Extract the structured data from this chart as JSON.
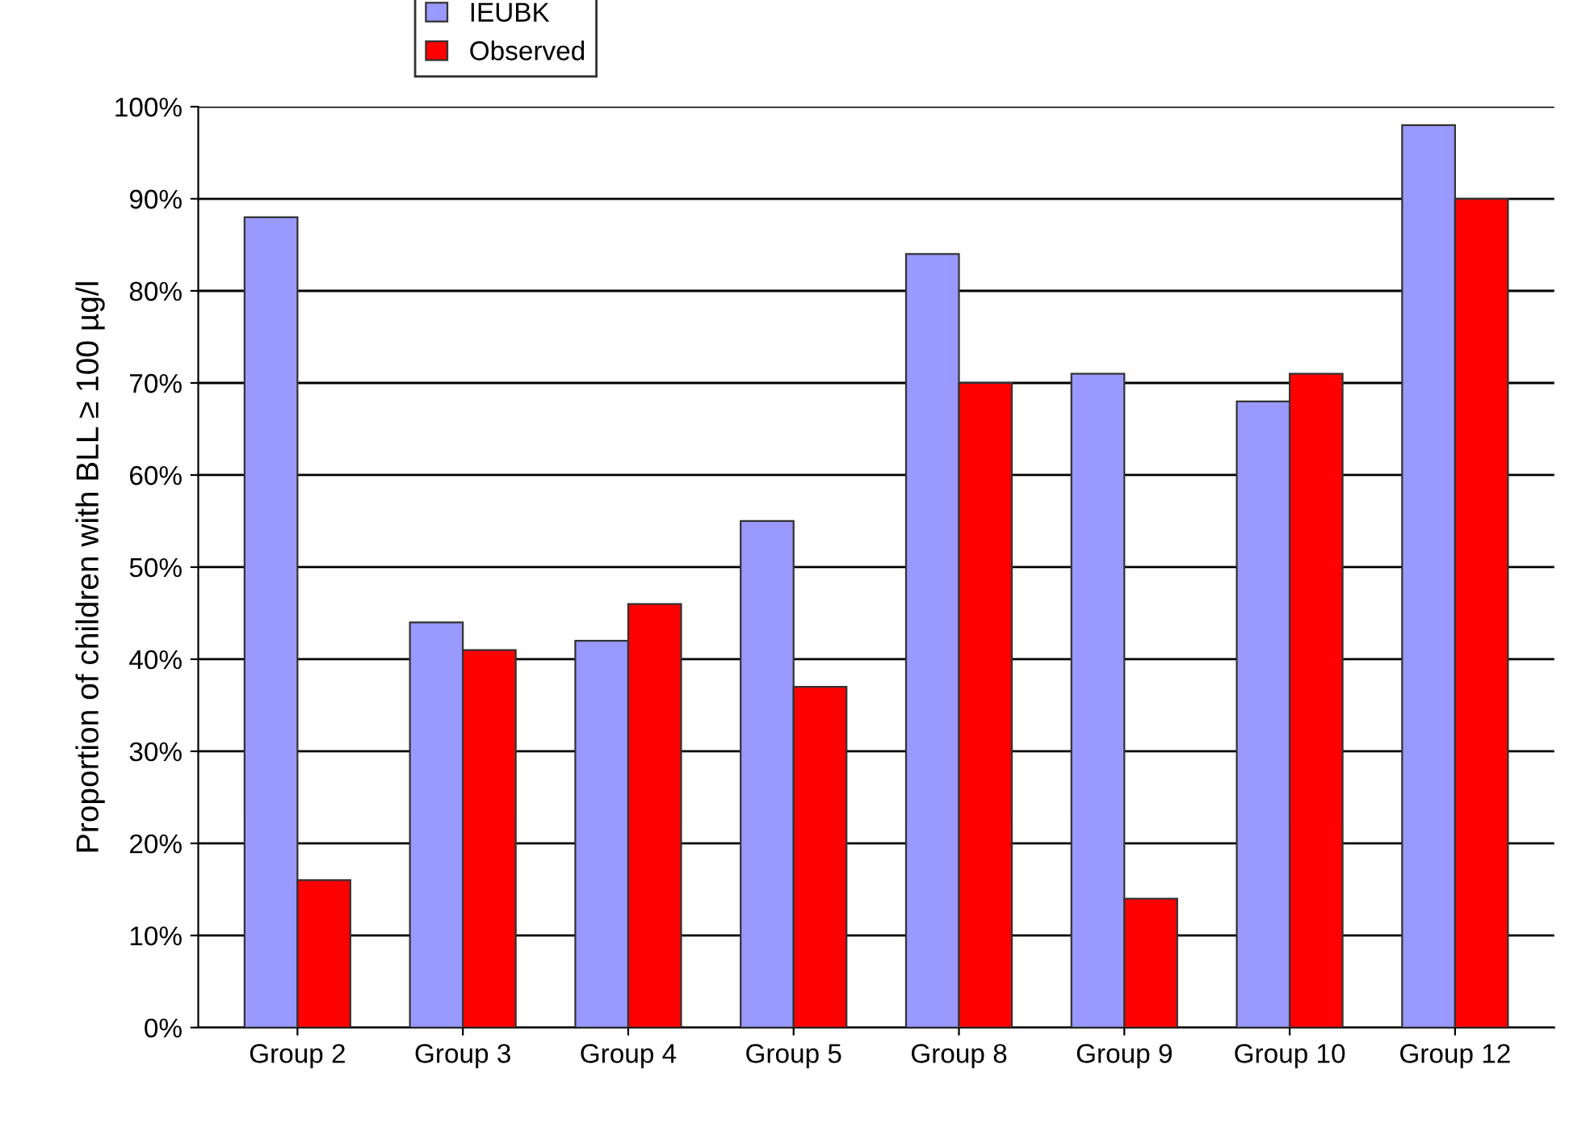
{
  "chart_data": {
    "type": "bar",
    "ylabel": "Proportion of children with BLL ≥ 100 µg/l",
    "categories": [
      "Group 2",
      "Group 3",
      "Group 4",
      "Group 5",
      "Group 8",
      "Group 9",
      "Group 10",
      "Group 12"
    ],
    "series": [
      {
        "name": "IEUBK",
        "color": "#9999ff",
        "values": [
          88,
          44,
          42,
          55,
          84,
          71,
          68,
          98
        ]
      },
      {
        "name": "Observed",
        "color": "#ff0000",
        "values": [
          16,
          41,
          46,
          37,
          70,
          14,
          71,
          90
        ]
      }
    ],
    "ylim": [
      0,
      100
    ],
    "yticks": [
      {
        "value": 0,
        "label": "0%"
      },
      {
        "value": 10,
        "label": "10%"
      },
      {
        "value": 20,
        "label": "20%"
      },
      {
        "value": 30,
        "label": "30%"
      },
      {
        "value": 40,
        "label": "40%"
      },
      {
        "value": 50,
        "label": "50%"
      },
      {
        "value": 60,
        "label": "60%"
      },
      {
        "value": 70,
        "label": "70%"
      },
      {
        "value": 80,
        "label": "80%"
      },
      {
        "value": 90,
        "label": "90%"
      },
      {
        "value": 100,
        "label": "100%"
      }
    ],
    "grid": "y",
    "legend": "top left"
  }
}
